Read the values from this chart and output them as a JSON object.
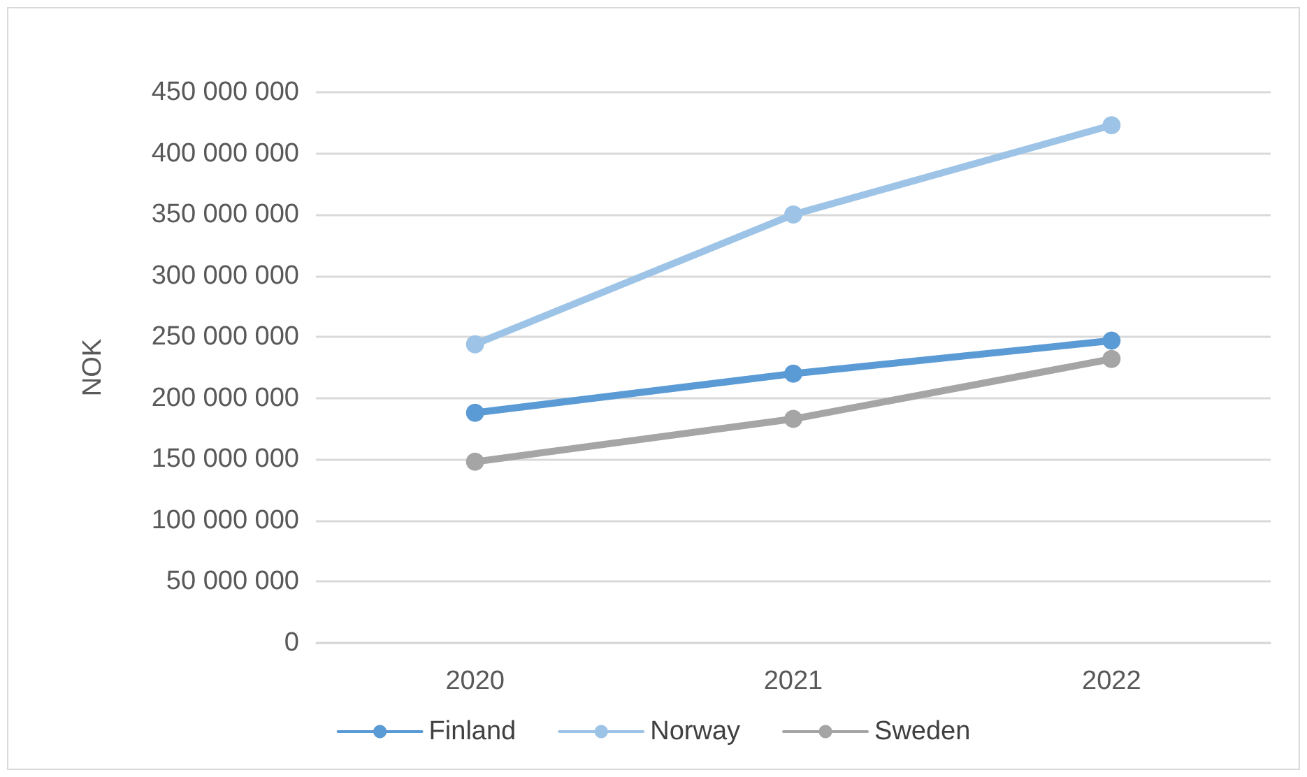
{
  "chart_data": {
    "type": "line",
    "ylabel": "NOK",
    "categories": [
      "2020",
      "2021",
      "2022"
    ],
    "series": [
      {
        "name": "Finland",
        "color": "#5b9bd5",
        "values": [
          188000000,
          220000000,
          247000000
        ]
      },
      {
        "name": "Norway",
        "color": "#9dc3e6",
        "values": [
          244000000,
          350000000,
          423000000
        ]
      },
      {
        "name": "Sweden",
        "color": "#a5a5a5",
        "values": [
          148000000,
          183000000,
          232000000
        ]
      }
    ],
    "ylim": [
      0,
      450000000
    ],
    "yticks": [
      {
        "value": 0,
        "label": "0"
      },
      {
        "value": 50000000,
        "label": "50 000 000"
      },
      {
        "value": 100000000,
        "label": "100 000 000"
      },
      {
        "value": 150000000,
        "label": "150 000 000"
      },
      {
        "value": 200000000,
        "label": "200 000 000"
      },
      {
        "value": 250000000,
        "label": "250 000 000"
      },
      {
        "value": 300000000,
        "label": "300 000 000"
      },
      {
        "value": 350000000,
        "label": "350 000 000"
      },
      {
        "value": 400000000,
        "label": "400 000 000"
      },
      {
        "value": 450000000,
        "label": "450 000 000"
      }
    ],
    "grid": "y",
    "legend": "bottom",
    "marker": "circle",
    "line_style": "solid"
  }
}
